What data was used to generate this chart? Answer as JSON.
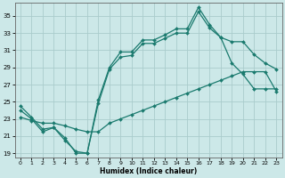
{
  "xlabel": "Humidex (Indice chaleur)",
  "bg_color": "#cce8e8",
  "grid_color": "#aacccc",
  "line_color": "#1a7a6e",
  "xlim": [
    -0.5,
    23.5
  ],
  "ylim": [
    18.5,
    36.5
  ],
  "xticks": [
    0,
    1,
    2,
    3,
    4,
    5,
    6,
    7,
    8,
    9,
    10,
    11,
    12,
    13,
    14,
    15,
    16,
    17,
    18,
    19,
    20,
    21,
    22,
    23
  ],
  "yticks": [
    19,
    21,
    23,
    25,
    27,
    29,
    31,
    33,
    35
  ],
  "line1_x": [
    0,
    1,
    2,
    3,
    4,
    5,
    6,
    7,
    8,
    9,
    10,
    11,
    12,
    13,
    14,
    15,
    16,
    17,
    18,
    19,
    20,
    21,
    22,
    23
  ],
  "line1_y": [
    24.5,
    23.2,
    21.8,
    22.0,
    20.8,
    19.0,
    19.0,
    25.2,
    29.0,
    30.8,
    30.8,
    32.2,
    32.2,
    32.8,
    33.5,
    33.5,
    36.0,
    34.0,
    32.5,
    29.5,
    28.2,
    26.5,
    26.5,
    26.5
  ],
  "line2_x": [
    0,
    1,
    2,
    3,
    4,
    5,
    6,
    7,
    8,
    9,
    10,
    11,
    12,
    13,
    14,
    15,
    16,
    17,
    18,
    19,
    20,
    21,
    22,
    23
  ],
  "line2_y": [
    24.0,
    23.0,
    21.5,
    22.0,
    20.5,
    19.2,
    19.0,
    24.8,
    28.8,
    30.2,
    30.4,
    31.8,
    31.8,
    32.4,
    33.0,
    33.0,
    35.5,
    33.6,
    32.5,
    32.0,
    32.0,
    30.5,
    29.5,
    28.8
  ],
  "line3_x": [
    0,
    1,
    2,
    3,
    4,
    5,
    6,
    7,
    8,
    9,
    10,
    11,
    12,
    13,
    14,
    15,
    16,
    17,
    18,
    19,
    20,
    21,
    22,
    23
  ],
  "line3_y": [
    23.2,
    22.8,
    22.5,
    22.5,
    22.2,
    21.8,
    21.5,
    21.5,
    22.5,
    23.0,
    23.5,
    24.0,
    24.5,
    25.0,
    25.5,
    26.0,
    26.5,
    27.0,
    27.5,
    28.0,
    28.5,
    28.5,
    28.5,
    26.2
  ]
}
